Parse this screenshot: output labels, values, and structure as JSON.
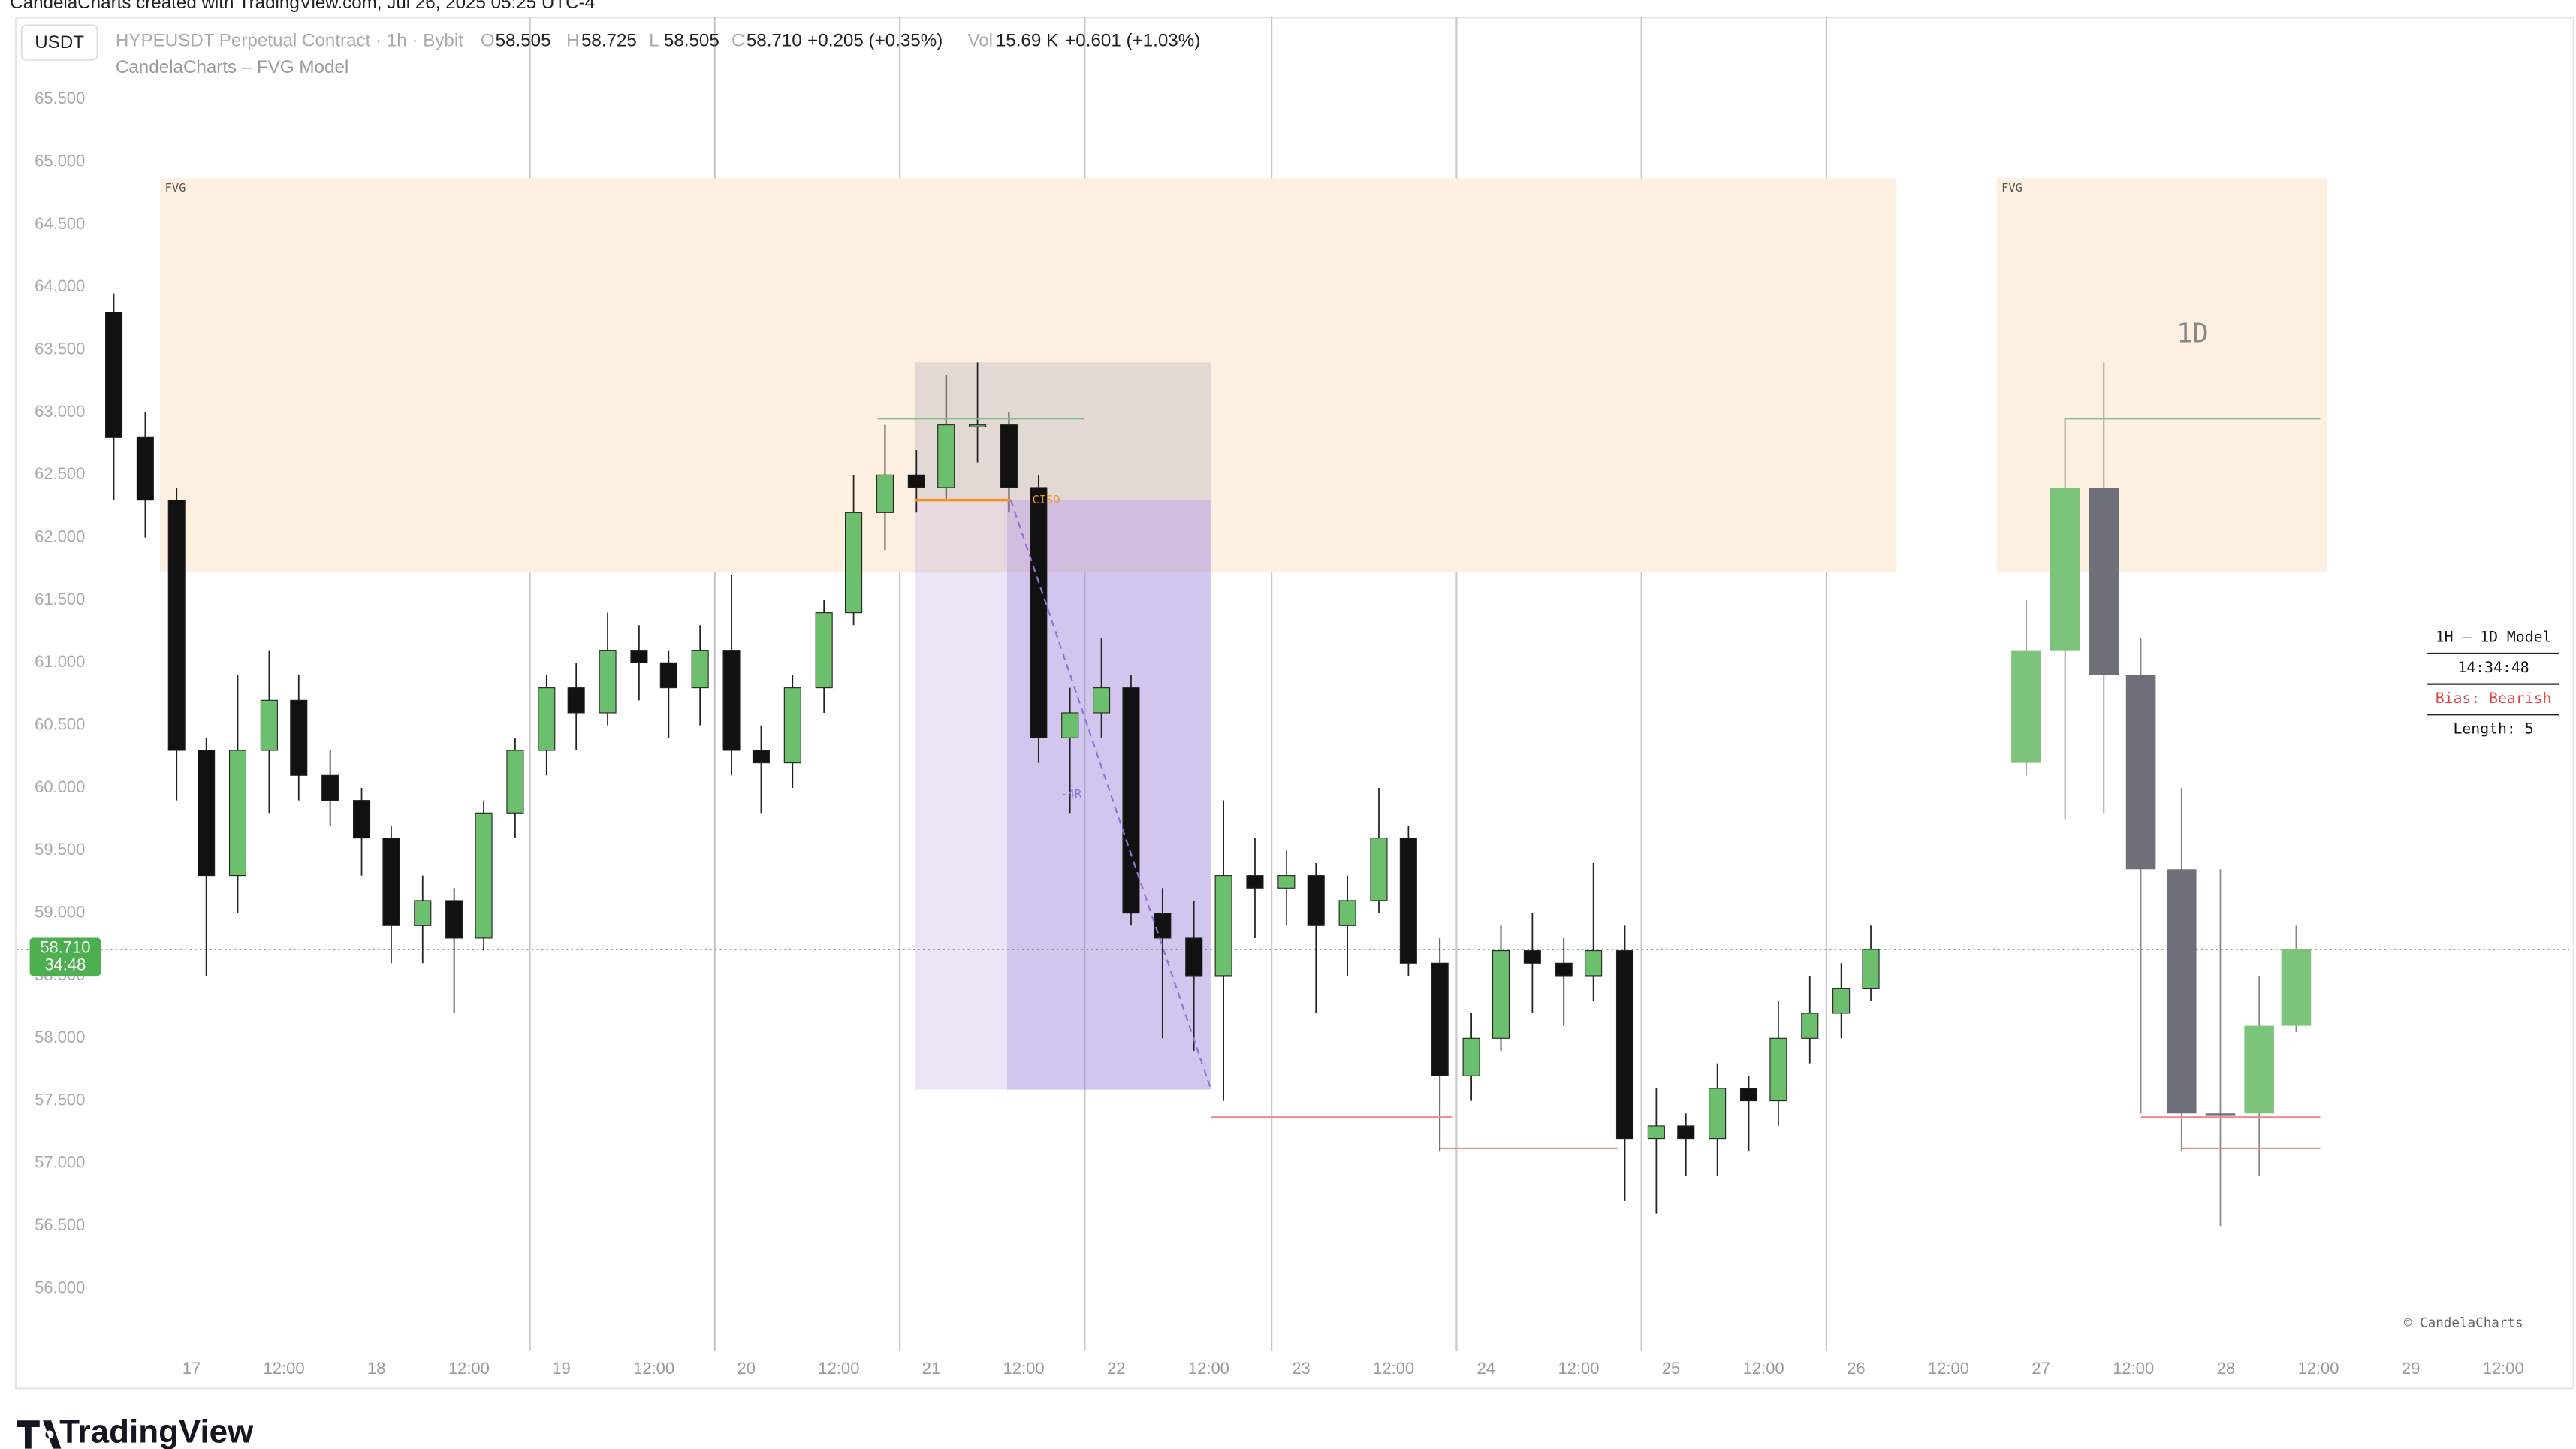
{
  "page": {
    "watermark": "CandelaCharts created with TradingView.com, Jul 26, 2025 05:25 UTC-4",
    "currency": "USDT",
    "symbol": "HYPEUSDT Perpetual Contract · 1h · Bybit",
    "ohlc": [
      {
        "label": "O",
        "value": "58.505"
      },
      {
        "label": "H",
        "value": "58.725"
      },
      {
        "label": "L",
        "value": "58.505"
      },
      {
        "label": "C",
        "value": "58.710"
      }
    ],
    "change": "+0.205 (+0.35%)",
    "vol_label": "Vol",
    "volume": "15.69 K",
    "vol_change": "+0.601 (+1.03%)",
    "indicator": "CandelaCharts – FVG Model",
    "brand": "TradingView",
    "copyright": "© CandelaCharts"
  },
  "chart_data": {
    "type": "candlestick",
    "up_color": "#6cbf6c",
    "down_color": "#111111",
    "x": [
      16.58,
      16.75,
      16.92,
      17.08,
      17.25,
      17.42,
      17.58,
      17.75,
      17.92,
      18.08,
      18.25,
      18.42,
      18.58,
      18.75,
      18.92,
      19.08,
      19.25,
      19.42,
      19.58,
      19.75,
      19.92,
      20.08,
      20.25,
      20.42,
      20.58,
      20.75,
      20.92,
      21.08,
      21.25,
      21.42,
      21.58,
      21.75,
      21.92,
      22.08,
      22.25,
      22.42,
      22.58,
      22.75,
      22.92,
      23.08,
      23.25,
      23.42,
      23.58,
      23.75,
      23.92,
      24.08,
      24.25,
      24.42,
      24.58,
      24.75,
      24.92,
      25.08,
      25.25,
      25.42,
      25.58,
      25.75,
      25.92,
      26.08
    ],
    "open": [
      63.8,
      62.8,
      62.3,
      60.3,
      59.3,
      60.3,
      60.7,
      60.1,
      59.9,
      59.6,
      58.9,
      59.1,
      58.8,
      59.8,
      60.3,
      60.8,
      60.6,
      61.1,
      61.0,
      60.8,
      61.1,
      60.3,
      60.2,
      60.8,
      61.4,
      62.2,
      62.5,
      62.4,
      62.9,
      62.9,
      62.4,
      60.4,
      60.6,
      60.8,
      59.0,
      58.8,
      58.5,
      59.3,
      59.2,
      59.3,
      58.9,
      59.1,
      59.6,
      58.6,
      57.7,
      58.0,
      58.7,
      58.6,
      58.5,
      58.7,
      57.2,
      57.3,
      57.2,
      57.6,
      57.5,
      58.0,
      58.2,
      58.4
    ],
    "high": [
      63.95,
      63.0,
      62.4,
      60.4,
      60.9,
      61.1,
      60.9,
      60.3,
      60.0,
      59.7,
      59.3,
      59.2,
      59.9,
      60.4,
      60.9,
      61.0,
      61.4,
      61.3,
      61.1,
      61.3,
      61.7,
      60.5,
      60.9,
      61.5,
      62.5,
      62.9,
      62.7,
      63.3,
      63.4,
      63.0,
      62.5,
      60.8,
      61.2,
      60.9,
      59.2,
      59.1,
      59.9,
      59.6,
      59.5,
      59.4,
      59.3,
      60.0,
      59.7,
      58.8,
      58.2,
      58.9,
      59.0,
      58.8,
      59.4,
      58.9,
      57.6,
      57.4,
      57.8,
      57.7,
      58.3,
      58.5,
      58.6,
      58.9
    ],
    "low": [
      62.3,
      62.0,
      59.9,
      58.5,
      59.0,
      59.8,
      59.9,
      59.7,
      59.3,
      58.6,
      58.6,
      58.2,
      58.7,
      59.6,
      60.1,
      60.3,
      60.5,
      60.7,
      60.4,
      60.5,
      60.1,
      59.8,
      60.0,
      60.6,
      61.3,
      61.9,
      62.2,
      62.3,
      62.6,
      62.2,
      60.2,
      59.8,
      60.4,
      58.9,
      58.0,
      57.9,
      57.5,
      58.8,
      58.9,
      58.2,
      58.5,
      59.0,
      58.5,
      57.1,
      57.5,
      57.9,
      58.2,
      58.1,
      58.3,
      56.7,
      56.6,
      56.9,
      56.9,
      57.1,
      57.3,
      57.8,
      58.0,
      58.3
    ],
    "close": [
      62.8,
      62.3,
      60.3,
      59.3,
      60.3,
      60.7,
      60.1,
      59.9,
      59.6,
      58.9,
      59.1,
      58.8,
      59.8,
      60.3,
      60.8,
      60.6,
      61.1,
      61.0,
      60.8,
      61.1,
      60.3,
      60.2,
      60.8,
      61.4,
      62.2,
      62.5,
      62.4,
      62.9,
      62.9,
      62.4,
      60.4,
      60.6,
      60.8,
      59.0,
      58.8,
      58.5,
      59.3,
      59.2,
      59.3,
      58.9,
      59.1,
      59.6,
      58.6,
      57.7,
      58.0,
      58.7,
      58.6,
      58.5,
      58.7,
      57.2,
      57.3,
      57.2,
      57.6,
      57.5,
      58.0,
      58.2,
      58.4,
      58.71
    ],
    "htf": {
      "label": "1D",
      "label_x": 27.82,
      "label_y": 63.62,
      "up_color": "#7cc47c",
      "down_color": "#6e7079",
      "x": [
        26.92,
        27.13,
        27.34,
        27.54,
        27.76,
        27.97,
        28.18,
        28.38
      ],
      "open": [
        60.2,
        61.1,
        62.4,
        60.9,
        59.35,
        57.4,
        57.4,
        58.1
      ],
      "high": [
        61.5,
        62.95,
        63.4,
        61.2,
        60.0,
        59.35,
        58.5,
        58.9
      ],
      "low": [
        60.1,
        59.75,
        59.8,
        57.4,
        57.1,
        56.5,
        56.9,
        58.05
      ],
      "close": [
        61.1,
        62.4,
        60.9,
        59.35,
        57.4,
        57.38,
        58.1,
        58.71
      ]
    },
    "fvg_zones": [
      {
        "label": "FVG",
        "x": [
          16.83,
          26.22
        ],
        "y": [
          61.72,
          64.87
        ]
      },
      {
        "label": "FVG",
        "x": [
          26.76,
          28.55
        ],
        "y": [
          61.72,
          64.87
        ]
      }
    ],
    "risk_box": {
      "x": [
        20.91,
        22.51
      ],
      "y": [
        62.3,
        63.4
      ],
      "color": "#a9a7b8"
    },
    "reward_box": {
      "x": [
        20.91,
        22.51
      ],
      "split_x": 21.41,
      "y": [
        57.59,
        62.3
      ],
      "color": "#9b7fd9"
    },
    "cisd": {
      "label": "CISD",
      "price": 62.3,
      "x": [
        20.91,
        21.43
      ],
      "color": "#f0932b"
    },
    "projection": {
      "label": "-4R",
      "label_x": 21.7,
      "label_y": 59.95,
      "x": [
        21.43,
        22.51
      ],
      "y": [
        62.3,
        57.6
      ],
      "color": "#8b75d6"
    },
    "levels": [
      {
        "price": 62.95,
        "x": [
          20.71,
          21.83
        ],
        "color": "#7fbf8a"
      },
      {
        "price": 57.37,
        "x": [
          22.51,
          23.82
        ],
        "color": "#f08a8a"
      },
      {
        "price": 57.12,
        "x": [
          23.75,
          24.71
        ],
        "color": "#f08a8a"
      },
      {
        "price": 62.95,
        "x": [
          27.13,
          28.51
        ],
        "color": "#7fbf8a"
      },
      {
        "price": 57.37,
        "x": [
          27.54,
          28.51
        ],
        "color": "#f08a8a"
      },
      {
        "price": 57.12,
        "x": [
          27.76,
          28.51
        ],
        "color": "#f08a8a"
      }
    ],
    "session_lines": [
      18.83,
      19.83,
      20.83,
      21.83,
      22.84,
      23.84,
      24.84,
      25.84
    ],
    "last_price": {
      "value": 58.71,
      "label": "58.710",
      "countdown": "34:48",
      "color": "#4caf50"
    },
    "table": {
      "title": "1H – 1D Model",
      "timer": "14:34:48",
      "bias": "Bias: Bearish",
      "length": "Length: 5"
    },
    "xlim": [
      16.054,
      29.875
    ],
    "ylim": [
      55.5,
      66.16
    ],
    "yticks": [
      {
        "value": 56,
        "label": "56.000"
      },
      {
        "value": 56.5,
        "label": "56.500"
      },
      {
        "value": 57,
        "label": "57.000"
      },
      {
        "value": 57.5,
        "label": "57.500"
      },
      {
        "value": 58,
        "label": "58.000"
      },
      {
        "value": 58.5,
        "label": "58.500"
      },
      {
        "value": 59,
        "label": "59.000"
      },
      {
        "value": 59.5,
        "label": "59.500"
      },
      {
        "value": 60,
        "label": "60.000"
      },
      {
        "value": 60.5,
        "label": "60.500"
      },
      {
        "value": 61,
        "label": "61.000"
      },
      {
        "value": 61.5,
        "label": "61.500"
      },
      {
        "value": 62,
        "label": "62.000"
      },
      {
        "value": 62.5,
        "label": "62.500"
      },
      {
        "value": 63,
        "label": "63.000"
      },
      {
        "value": 63.5,
        "label": "63.500"
      },
      {
        "value": 64,
        "label": "64.000"
      },
      {
        "value": 64.5,
        "label": "64.500"
      },
      {
        "value": 65,
        "label": "65.000"
      },
      {
        "value": 65.5,
        "label": "65.500"
      }
    ],
    "xticks": [
      17,
      {
        "value": 17.5,
        "label": "12:00"
      },
      18,
      {
        "value": 18.5,
        "label": "12:00"
      },
      19,
      {
        "value": 19.5,
        "label": "12:00"
      },
      20,
      {
        "value": 20.5,
        "label": "12:00"
      },
      21,
      {
        "value": 21.5,
        "label": "12:00"
      },
      22,
      {
        "value": 22.5,
        "label": "12:00"
      },
      23,
      {
        "value": 23.5,
        "label": "12:00"
      },
      24,
      {
        "value": 24.5,
        "label": "12:00"
      },
      25,
      {
        "value": 25.5,
        "label": "12:00"
      },
      26,
      {
        "value": 26.5,
        "label": "12:00"
      },
      27,
      {
        "value": 27.5,
        "label": "12:00"
      },
      28,
      {
        "value": 28.5,
        "label": "12:00"
      },
      29,
      {
        "value": 29.5,
        "label": "12:00"
      }
    ]
  }
}
